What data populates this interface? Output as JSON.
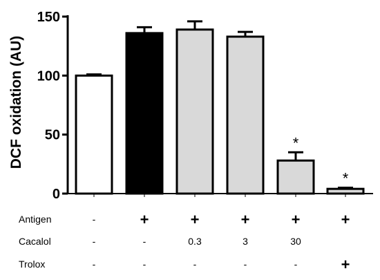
{
  "chart_data": {
    "type": "bar",
    "title": "",
    "ylabel": "DCF oxidation (AU)",
    "xlabel": "",
    "ylim": [
      0,
      150
    ],
    "yticks": [
      "0",
      "50",
      "100",
      "150"
    ],
    "grid": false,
    "legend": "none",
    "categories": [
      "1",
      "2",
      "3",
      "4",
      "5",
      "6"
    ],
    "values": [
      100,
      136,
      139,
      133,
      28,
      4
    ],
    "errors": [
      1,
      5,
      7,
      4,
      7,
      1
    ],
    "bar_colors": [
      "#ffffff",
      "#000000",
      "#d9d9d9",
      "#d9d9d9",
      "#d9d9d9",
      "#d9d9d9"
    ],
    "annotations": [
      "",
      "",
      "",
      "",
      "*",
      "*"
    ],
    "conditions": [
      {
        "label": "Antigen",
        "values": [
          "-",
          "+",
          "+",
          "+",
          "+",
          "+"
        ]
      },
      {
        "label": "Cacalol",
        "values": [
          "-",
          "-",
          "0.3",
          "3",
          "30",
          ""
        ]
      },
      {
        "label": "Trolox",
        "values": [
          "-",
          "-",
          "-",
          "-",
          "-",
          "+"
        ]
      }
    ]
  }
}
